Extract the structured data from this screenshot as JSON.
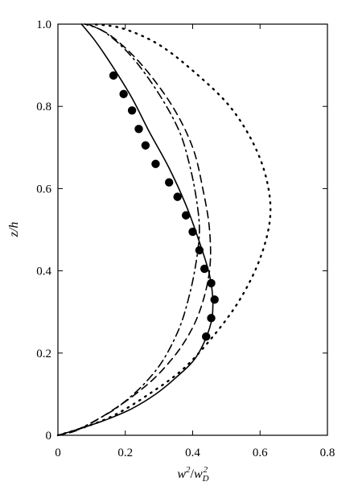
{
  "chart_data": {
    "type": "line",
    "xlabel": "w̄²/w_D²",
    "xlabel_parts": {
      "base": "w",
      "sup": "2",
      "sep": "/",
      "base2": "w",
      "sub2": "D",
      "sup2": "2"
    },
    "ylabel": "z/h",
    "xlim": [
      0,
      0.8
    ],
    "ylim": [
      0,
      1.0
    ],
    "x_ticks": [
      0,
      0.2,
      0.4,
      0.6,
      0.8
    ],
    "x_tick_labels": [
      "0",
      "0.2",
      "0.4",
      "0.6",
      "0.8"
    ],
    "y_ticks": [
      0,
      0.2,
      0.4,
      0.6,
      0.8,
      1.0
    ],
    "y_tick_labels": [
      "0",
      "0.2",
      "0.4",
      "0.6",
      "0.8",
      "1.0"
    ],
    "grid": false,
    "series": [
      {
        "style": "solid",
        "points": [
          [
            0.0,
            0.0
          ],
          [
            0.03,
            0.007
          ],
          [
            0.08,
            0.02
          ],
          [
            0.15,
            0.04
          ],
          [
            0.22,
            0.065
          ],
          [
            0.29,
            0.1
          ],
          [
            0.35,
            0.14
          ],
          [
            0.41,
            0.19
          ],
          [
            0.45,
            0.26
          ],
          [
            0.46,
            0.32
          ],
          [
            0.45,
            0.39
          ],
          [
            0.42,
            0.47
          ],
          [
            0.38,
            0.56
          ],
          [
            0.33,
            0.65
          ],
          [
            0.27,
            0.74
          ],
          [
            0.22,
            0.82
          ],
          [
            0.16,
            0.9
          ],
          [
            0.11,
            0.96
          ],
          [
            0.07,
            1.0
          ]
        ]
      },
      {
        "style": "dashed",
        "points": [
          [
            0.0,
            0.0
          ],
          [
            0.05,
            0.01
          ],
          [
            0.1,
            0.03
          ],
          [
            0.16,
            0.06
          ],
          [
            0.23,
            0.1
          ],
          [
            0.3,
            0.15
          ],
          [
            0.37,
            0.22
          ],
          [
            0.42,
            0.3
          ],
          [
            0.45,
            0.4
          ],
          [
            0.45,
            0.5
          ],
          [
            0.43,
            0.6
          ],
          [
            0.4,
            0.7
          ],
          [
            0.34,
            0.8
          ],
          [
            0.25,
            0.9
          ],
          [
            0.16,
            0.97
          ],
          [
            0.09,
            1.0
          ]
        ]
      },
      {
        "style": "dashdot",
        "points": [
          [
            0.0,
            0.0
          ],
          [
            0.06,
            0.015
          ],
          [
            0.12,
            0.04
          ],
          [
            0.18,
            0.07
          ],
          [
            0.25,
            0.12
          ],
          [
            0.31,
            0.18
          ],
          [
            0.36,
            0.26
          ],
          [
            0.39,
            0.34
          ],
          [
            0.41,
            0.42
          ],
          [
            0.42,
            0.5
          ],
          [
            0.41,
            0.58
          ],
          [
            0.39,
            0.66
          ],
          [
            0.36,
            0.74
          ],
          [
            0.3,
            0.83
          ],
          [
            0.22,
            0.92
          ],
          [
            0.14,
            0.98
          ],
          [
            0.08,
            1.0
          ]
        ]
      },
      {
        "style": "dotted",
        "points": [
          [
            0.0,
            0.0
          ],
          [
            0.08,
            0.02
          ],
          [
            0.17,
            0.05
          ],
          [
            0.27,
            0.1
          ],
          [
            0.37,
            0.16
          ],
          [
            0.46,
            0.24
          ],
          [
            0.54,
            0.33
          ],
          [
            0.6,
            0.43
          ],
          [
            0.63,
            0.53
          ],
          [
            0.62,
            0.62
          ],
          [
            0.58,
            0.71
          ],
          [
            0.51,
            0.8
          ],
          [
            0.41,
            0.88
          ],
          [
            0.3,
            0.95
          ],
          [
            0.19,
            0.99
          ],
          [
            0.1,
            1.0
          ]
        ]
      }
    ],
    "markers": {
      "style": "filled-circle",
      "points": [
        [
          0.165,
          0.875
        ],
        [
          0.195,
          0.83
        ],
        [
          0.22,
          0.79
        ],
        [
          0.24,
          0.745
        ],
        [
          0.26,
          0.705
        ],
        [
          0.29,
          0.66
        ],
        [
          0.33,
          0.615
        ],
        [
          0.355,
          0.58
        ],
        [
          0.38,
          0.535
        ],
        [
          0.4,
          0.495
        ],
        [
          0.42,
          0.45
        ],
        [
          0.435,
          0.405
        ],
        [
          0.455,
          0.37
        ],
        [
          0.465,
          0.33
        ],
        [
          0.455,
          0.285
        ],
        [
          0.44,
          0.24
        ]
      ]
    }
  }
}
